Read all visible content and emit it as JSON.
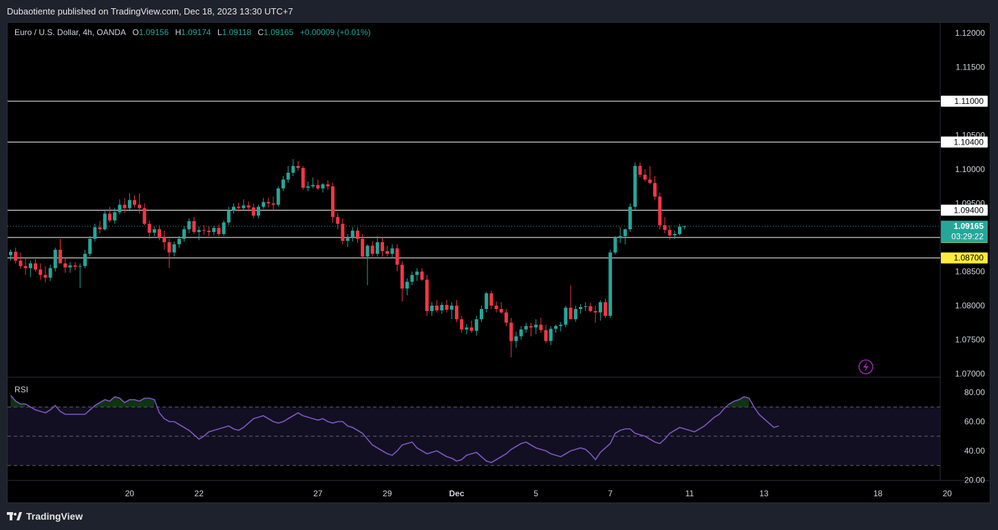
{
  "header": {
    "publish_line": "Dubaotiente published on TradingView.com, Dec 18, 2023 13:30 UTC+7"
  },
  "legend": {
    "symbol": "Euro / U.S. Dollar, 4h, OANDA",
    "open_label": "O",
    "open": "1.09156",
    "high_label": "H",
    "high": "1.09174",
    "low_label": "L",
    "low": "1.09118",
    "close_label": "C",
    "close": "1.09165",
    "change": "+0.00009 (+0.01%)"
  },
  "rsi_label": "RSI",
  "footer": {
    "brand": "TradingView"
  },
  "colors": {
    "up": "#26a69a",
    "down": "#f23645",
    "rsi_line": "#7e57c2",
    "price_tag": "#26a69a",
    "yellow_tag": "#ffeb3b",
    "white_tag": "#ffffff"
  },
  "icons": {
    "replay": "lightning-icon",
    "brand": "tradingview-logo-icon"
  },
  "chart_data": [
    {
      "type": "candlestick",
      "title": "Euro / U.S. Dollar, 4h, OANDA",
      "ylim": [
        1.07,
        1.12
      ],
      "price_ticks": [
        "1.12000",
        "1.11500",
        "1.11000",
        "1.10500",
        "1.10000",
        "1.09500",
        "1.09000",
        "1.08500",
        "1.08000",
        "1.07500",
        "1.07000"
      ],
      "x_ticks": [
        {
          "label": "20",
          "bar": 24,
          "bold": false
        },
        {
          "label": "22",
          "bar": 38,
          "bold": false
        },
        {
          "label": "27",
          "bar": 62,
          "bold": false
        },
        {
          "label": "29",
          "bar": 76,
          "bold": false
        },
        {
          "label": "Dec",
          "bar": 90,
          "bold": true
        },
        {
          "label": "5",
          "bar": 106,
          "bold": false
        },
        {
          "label": "7",
          "bar": 121,
          "bold": false
        },
        {
          "label": "11",
          "bar": 137,
          "bold": false
        },
        {
          "label": "13",
          "bar": 152,
          "bold": false
        },
        {
          "label": "18",
          "bar": 175,
          "bold": false
        },
        {
          "label": "20",
          "bar": 189,
          "bold": false
        }
      ],
      "horizontal_lines": [
        {
          "price": 1.11,
          "label": "1.11000",
          "tag": "white"
        },
        {
          "price": 1.104,
          "label": "1.10400",
          "tag": "white"
        },
        {
          "price": 1.094,
          "label": "1.09400",
          "tag": "white"
        },
        {
          "price": 1.09,
          "label": "1.09000",
          "tag": "yellow"
        },
        {
          "price": 1.087,
          "label": "1.08700",
          "tag": "yellow"
        }
      ],
      "last_price": {
        "price": 1.09165,
        "label": "1.09165",
        "countdown": "03:29:22"
      },
      "ohlc": [
        [
          1.0874,
          1.0882,
          1.0866,
          1.0879
        ],
        [
          1.0879,
          1.0885,
          1.0862,
          1.0866
        ],
        [
          1.0866,
          1.0878,
          1.0854,
          1.0858
        ],
        [
          1.0858,
          1.087,
          1.0845,
          1.0855
        ],
        [
          1.0855,
          1.0866,
          1.0842,
          1.0862
        ],
        [
          1.0862,
          1.0868,
          1.085,
          1.0853
        ],
        [
          1.0853,
          1.0862,
          1.0838,
          1.0845
        ],
        [
          1.0845,
          1.0858,
          1.0834,
          1.0841
        ],
        [
          1.0841,
          1.086,
          1.0836,
          1.0855
        ],
        [
          1.0855,
          1.0885,
          1.085,
          1.0882
        ],
        [
          1.0882,
          1.0898,
          1.0864,
          1.0862
        ],
        [
          1.0862,
          1.087,
          1.0848,
          1.0856
        ],
        [
          1.0856,
          1.0864,
          1.0848,
          1.0859
        ],
        [
          1.0859,
          1.0864,
          1.0852,
          1.0857
        ],
        [
          1.0857,
          1.0862,
          1.0826,
          1.0858
        ],
        [
          1.0858,
          1.0882,
          1.0855,
          1.0876
        ],
        [
          1.0876,
          1.0902,
          1.0872,
          1.0898
        ],
        [
          1.0898,
          1.092,
          1.0894,
          1.0915
        ],
        [
          1.0915,
          1.0924,
          1.0906,
          1.0912
        ],
        [
          1.0912,
          1.094,
          1.091,
          1.0935
        ],
        [
          1.0935,
          1.0945,
          1.0922,
          1.0925
        ],
        [
          1.0925,
          1.0943,
          1.092,
          1.0937
        ],
        [
          1.0937,
          1.0956,
          1.0934,
          1.0948
        ],
        [
          1.0948,
          1.0958,
          1.0936,
          1.0943
        ],
        [
          1.0943,
          1.0965,
          1.0938,
          1.0955
        ],
        [
          1.0955,
          1.0962,
          1.0944,
          1.0948
        ],
        [
          1.0948,
          1.0965,
          1.0935,
          1.0943
        ],
        [
          1.0943,
          1.095,
          1.0918,
          1.092
        ],
        [
          1.092,
          1.0925,
          1.0898,
          1.0907
        ],
        [
          1.0907,
          1.0916,
          1.0902,
          1.0912
        ],
        [
          1.0912,
          1.0918,
          1.0896,
          1.09
        ],
        [
          1.09,
          1.091,
          1.0882,
          1.0893
        ],
        [
          1.0893,
          1.0898,
          1.0855,
          1.0878
        ],
        [
          1.0878,
          1.0894,
          1.0872,
          1.089
        ],
        [
          1.089,
          1.0902,
          1.0885,
          1.0898
        ],
        [
          1.0898,
          1.0916,
          1.0894,
          1.0912
        ],
        [
          1.0912,
          1.0928,
          1.0906,
          1.0924
        ],
        [
          1.0924,
          1.093,
          1.0905,
          1.0908
        ],
        [
          1.0908,
          1.0916,
          1.0896,
          1.0911
        ],
        [
          1.0911,
          1.0918,
          1.0904,
          1.091
        ],
        [
          1.091,
          1.0916,
          1.0902,
          1.0908
        ],
        [
          1.0908,
          1.0917,
          1.0903,
          1.0914
        ],
        [
          1.0914,
          1.0919,
          1.0902,
          1.0905
        ],
        [
          1.0905,
          1.0925,
          1.0902,
          1.0922
        ],
        [
          1.0922,
          1.0945,
          1.0918,
          1.094
        ],
        [
          1.094,
          1.095,
          1.0935,
          1.0945
        ],
        [
          1.0945,
          1.0951,
          1.0938,
          1.0943
        ],
        [
          1.0943,
          1.0956,
          1.094,
          1.0947
        ],
        [
          1.0947,
          1.0953,
          1.0938,
          1.0944
        ],
        [
          1.0944,
          1.095,
          1.0928,
          1.0932
        ],
        [
          1.0932,
          1.0948,
          1.0928,
          1.0945
        ],
        [
          1.0945,
          1.0958,
          1.0942,
          1.0952
        ],
        [
          1.0952,
          1.0958,
          1.0944,
          1.095
        ],
        [
          1.095,
          1.096,
          1.094,
          1.0948
        ],
        [
          1.0948,
          1.0975,
          1.0945,
          1.0972
        ],
        [
          1.0972,
          1.099,
          1.0968,
          1.0985
        ],
        [
          1.0985,
          1.1005,
          1.098,
          1.0995
        ],
        [
          1.0995,
          1.1015,
          1.099,
          1.1005
        ],
        [
          1.1005,
          1.1012,
          1.0998,
          1.1002
        ],
        [
          1.1002,
          1.1005,
          1.097,
          1.0973
        ],
        [
          1.0973,
          1.0982,
          1.0968,
          1.0975
        ],
        [
          1.0975,
          1.0988,
          1.0972,
          1.0977
        ],
        [
          1.0977,
          1.0985,
          1.097,
          1.0972
        ],
        [
          1.0972,
          1.098,
          1.0966,
          1.0978
        ],
        [
          1.0978,
          1.0984,
          1.097,
          1.0975
        ],
        [
          1.0975,
          1.098,
          1.0922,
          1.093
        ],
        [
          1.093,
          1.0936,
          1.0912,
          1.092
        ],
        [
          1.092,
          1.0928,
          1.089,
          1.0895
        ],
        [
          1.0895,
          1.0905,
          1.0886,
          1.09
        ],
        [
          1.09,
          1.0915,
          1.0894,
          1.091
        ],
        [
          1.091,
          1.0915,
          1.0892,
          1.0898
        ],
        [
          1.0898,
          1.0905,
          1.087,
          1.0872
        ],
        [
          1.0872,
          1.089,
          1.083,
          1.0888
        ],
        [
          1.0888,
          1.0895,
          1.0872,
          1.0876
        ],
        [
          1.0876,
          1.0902,
          1.0872,
          1.0893
        ],
        [
          1.0893,
          1.09,
          1.0872,
          1.088
        ],
        [
          1.088,
          1.0888,
          1.0872,
          1.0876
        ],
        [
          1.0876,
          1.089,
          1.087,
          1.0884
        ],
        [
          1.0884,
          1.089,
          1.085,
          1.086
        ],
        [
          1.086,
          1.0865,
          1.0806,
          1.0825
        ],
        [
          1.0825,
          1.084,
          1.0815,
          1.0835
        ],
        [
          1.0835,
          1.085,
          1.083,
          1.0845
        ],
        [
          1.0845,
          1.0855,
          1.0836,
          1.085
        ],
        [
          1.085,
          1.0855,
          1.0836,
          1.0838
        ],
        [
          1.0838,
          1.0845,
          1.0785,
          1.0792
        ],
        [
          1.0792,
          1.0805,
          1.0785,
          1.08
        ],
        [
          1.08,
          1.0808,
          1.079,
          1.0793
        ],
        [
          1.0793,
          1.0805,
          1.0788,
          1.0801
        ],
        [
          1.0801,
          1.0808,
          1.079,
          1.0794
        ],
        [
          1.0794,
          1.0805,
          1.078,
          1.08
        ],
        [
          1.08,
          1.0808,
          1.0776,
          1.078
        ],
        [
          1.078,
          1.0785,
          1.076,
          1.0765
        ],
        [
          1.0765,
          1.0773,
          1.0758,
          1.0768
        ],
        [
          1.0768,
          1.0778,
          1.076,
          1.0763
        ],
        [
          1.0763,
          1.0785,
          1.0756,
          1.078
        ],
        [
          1.078,
          1.08,
          1.0776,
          1.0795
        ],
        [
          1.0795,
          1.082,
          1.079,
          1.0818
        ],
        [
          1.0818,
          1.0822,
          1.0795,
          1.08
        ],
        [
          1.08,
          1.0806,
          1.079,
          1.0795
        ],
        [
          1.0795,
          1.0805,
          1.0788,
          1.079
        ],
        [
          1.079,
          1.0795,
          1.077,
          1.0775
        ],
        [
          1.0775,
          1.0782,
          1.0724,
          1.0748
        ],
        [
          1.0748,
          1.0762,
          1.0738,
          1.0755
        ],
        [
          1.0755,
          1.077,
          1.075,
          1.0765
        ],
        [
          1.0765,
          1.0775,
          1.076,
          1.077
        ],
        [
          1.077,
          1.0775,
          1.0755,
          1.0768
        ],
        [
          1.0768,
          1.078,
          1.0758,
          1.0772
        ],
        [
          1.0772,
          1.0782,
          1.076,
          1.0764
        ],
        [
          1.0764,
          1.0772,
          1.0745,
          1.0748
        ],
        [
          1.0748,
          1.077,
          1.0742,
          1.0766
        ],
        [
          1.0766,
          1.0772,
          1.076,
          1.077
        ],
        [
          1.077,
          1.0776,
          1.0762,
          1.0772
        ],
        [
          1.0772,
          1.08,
          1.0768,
          1.0797
        ],
        [
          1.0797,
          1.083,
          1.078,
          1.078
        ],
        [
          1.078,
          1.08,
          1.0776,
          1.0795
        ],
        [
          1.0795,
          1.0802,
          1.0788,
          1.0798
        ],
        [
          1.0798,
          1.0805,
          1.0792,
          1.0799
        ],
        [
          1.0799,
          1.0804,
          1.079,
          1.0792
        ],
        [
          1.0792,
          1.08,
          1.0775,
          1.079
        ],
        [
          1.079,
          1.0808,
          1.0778,
          1.0805
        ],
        [
          1.0805,
          1.081,
          1.0782,
          1.0785
        ],
        [
          1.0785,
          1.0882,
          1.0782,
          1.0878
        ],
        [
          1.0878,
          1.0902,
          1.0875,
          1.0899
        ],
        [
          1.0899,
          1.0915,
          1.0892,
          1.0902
        ],
        [
          1.0902,
          1.0913,
          1.089,
          1.0912
        ],
        [
          1.0912,
          1.095,
          1.0908,
          1.0945
        ],
        [
          1.0945,
          1.101,
          1.094,
          1.1005
        ],
        [
          1.1005,
          1.101,
          1.0988,
          1.0992
        ],
        [
          1.0992,
          1.1,
          1.0982,
          1.0985
        ],
        [
          1.0985,
          1.1005,
          1.0978,
          1.098
        ],
        [
          1.098,
          1.099,
          1.0955,
          1.096
        ],
        [
          1.096,
          1.0966,
          1.0912,
          1.0918
        ],
        [
          1.0918,
          1.093,
          1.0906,
          1.0911
        ],
        [
          1.0911,
          1.0918,
          1.0897,
          1.0903
        ],
        [
          1.0903,
          1.091,
          1.0898,
          1.0905
        ],
        [
          1.0905,
          1.092,
          1.0903,
          1.0916
        ],
        [
          1.09156,
          1.09174,
          1.09118,
          1.09165
        ]
      ]
    },
    {
      "type": "line",
      "title": "RSI",
      "ylim": [
        20,
        80
      ],
      "y_ticks": [
        "80.00",
        "60.00",
        "40.00",
        "20.00"
      ],
      "bands": [
        30,
        50,
        70
      ],
      "values": [
        78,
        74,
        72,
        72,
        70,
        68,
        67,
        66,
        68,
        71,
        67,
        65,
        65,
        65,
        65,
        65,
        68,
        71,
        73,
        75,
        74,
        77,
        76,
        73,
        75,
        75,
        74,
        76,
        76,
        75,
        66,
        62,
        60,
        60,
        58,
        56,
        54,
        51,
        48,
        50,
        53,
        54,
        55,
        56,
        57,
        55,
        54,
        56,
        59,
        62,
        63,
        64,
        62,
        60,
        59,
        60,
        62,
        64,
        66,
        64,
        63,
        62,
        61,
        62,
        60,
        59,
        60,
        60,
        57,
        56,
        54,
        52,
        48,
        44,
        42,
        40,
        38,
        37,
        40,
        44,
        45,
        46,
        42,
        40,
        38,
        39,
        40,
        38,
        36,
        35,
        33,
        34,
        37,
        38,
        39,
        36,
        33,
        32,
        34,
        36,
        38,
        41,
        43,
        45,
        46,
        44,
        42,
        41,
        40,
        38,
        37,
        36,
        38,
        40,
        41,
        42,
        41,
        38,
        34,
        39,
        42,
        45,
        52,
        54,
        55,
        55,
        52,
        51,
        50,
        48,
        46,
        45,
        48,
        52,
        54,
        56,
        55,
        54,
        53,
        55,
        57,
        60,
        63,
        65,
        69,
        72,
        74,
        75,
        77,
        76,
        70,
        65,
        62,
        59,
        56,
        57
      ]
    }
  ]
}
